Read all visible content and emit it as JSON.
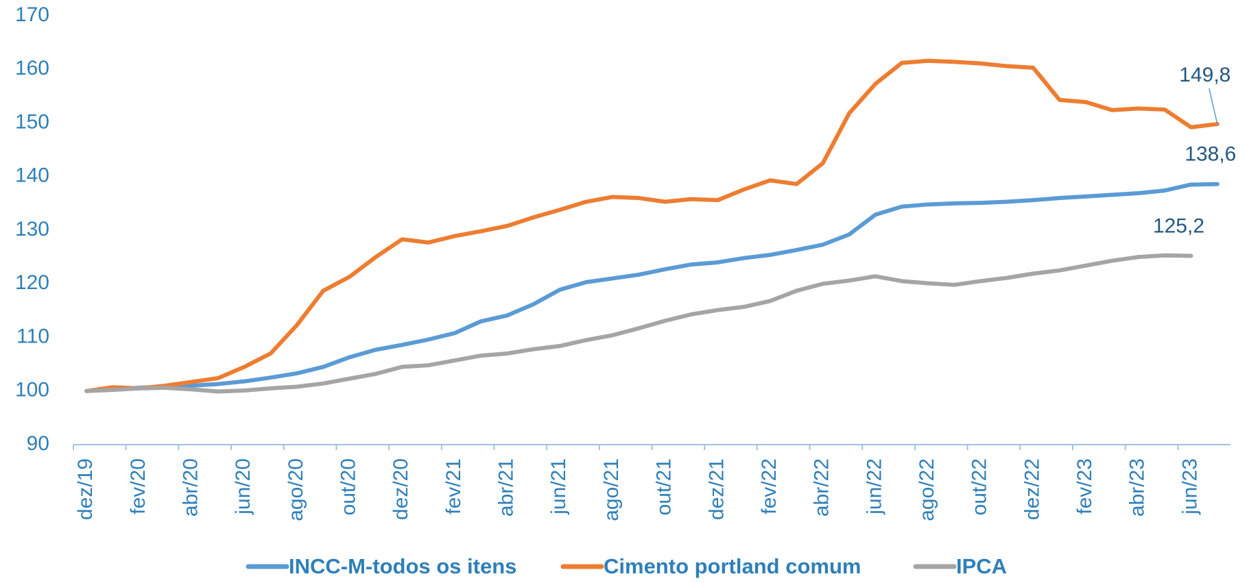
{
  "chart_data": {
    "type": "line",
    "categories": [
      "dez/19",
      null,
      "fev/20",
      null,
      "abr/20",
      null,
      "jun/20",
      null,
      "ago/20",
      null,
      "out/20",
      null,
      "dez/20",
      null,
      "fev/21",
      null,
      "abr/21",
      null,
      "jun/21",
      null,
      "ago/21",
      null,
      "out/21",
      null,
      "dez/21",
      null,
      "fev/22",
      null,
      "abr/22",
      null,
      "jun/22",
      null,
      "ago/22",
      null,
      "out/22",
      null,
      "dez/22",
      null,
      "fev/23",
      null,
      "abr/23",
      null,
      "jun/23",
      null
    ],
    "series": [
      {
        "name": "INCC-M-todos os itens",
        "color": "#5b9bd5",
        "values": [
          100,
          100.3,
          100.6,
          100.8,
          101.0,
          101.3,
          101.8,
          102.5,
          103.3,
          104.5,
          106.3,
          107.7,
          108.6,
          109.6,
          110.8,
          113.0,
          114.1,
          116.2,
          118.9,
          120.3,
          121.0,
          121.7,
          122.7,
          123.6,
          124.0,
          124.8,
          125.4,
          126.3,
          127.3,
          129.2,
          132.9,
          134.4,
          134.8,
          135.0,
          135.1,
          135.3,
          135.6,
          136.0,
          136.3,
          136.6,
          136.9,
          137.4,
          138.5,
          138.6
        ],
        "value_labels": [
          null,
          null,
          null,
          null,
          null,
          null,
          null,
          null,
          null,
          null,
          null,
          null,
          null,
          null,
          null,
          null,
          null,
          null,
          null,
          null,
          null,
          null,
          null,
          null,
          null,
          null,
          null,
          null,
          null,
          null,
          null,
          null,
          null,
          null,
          null,
          null,
          null,
          null,
          null,
          null,
          null,
          null,
          null,
          "138,6"
        ]
      },
      {
        "name": "Cimento portland comum",
        "color": "#ed7d31",
        "values": [
          100,
          100.7,
          100.5,
          101.0,
          101.7,
          102.4,
          104.5,
          107.0,
          112.3,
          118.7,
          121.3,
          125.0,
          128.3,
          127.7,
          128.9,
          129.8,
          130.8,
          132.4,
          133.8,
          135.3,
          136.2,
          136.0,
          135.3,
          135.8,
          135.6,
          137.6,
          139.3,
          138.6,
          142.5,
          151.8,
          157.3,
          161.2,
          161.6,
          161.4,
          161.1,
          160.6,
          160.3,
          154.3,
          153.9,
          152.4,
          152.7,
          152.5,
          149.2,
          149.8
        ],
        "value_labels": [
          null,
          null,
          null,
          null,
          null,
          null,
          null,
          null,
          null,
          null,
          null,
          null,
          null,
          null,
          null,
          null,
          null,
          null,
          null,
          null,
          null,
          null,
          null,
          null,
          null,
          null,
          null,
          null,
          null,
          null,
          null,
          null,
          null,
          null,
          null,
          null,
          null,
          null,
          null,
          null,
          null,
          null,
          null,
          "149,8"
        ]
      },
      {
        "name": "IPCA",
        "color": "#a5a5a5",
        "values": [
          100,
          100.2,
          100.5,
          100.6,
          100.3,
          99.9,
          100.1,
          100.5,
          100.8,
          101.4,
          102.3,
          103.2,
          104.5,
          104.8,
          105.7,
          106.6,
          107.0,
          107.8,
          108.4,
          109.5,
          110.4,
          111.7,
          113.1,
          114.3,
          115.1,
          115.7,
          116.8,
          118.7,
          120.0,
          120.6,
          121.4,
          120.5,
          120.1,
          119.8,
          120.5,
          121.1,
          121.9,
          122.5,
          123.4,
          124.3,
          125.0,
          125.3,
          125.2,
          null
        ],
        "value_labels": [
          null,
          null,
          null,
          null,
          null,
          null,
          null,
          null,
          null,
          null,
          null,
          null,
          null,
          null,
          null,
          null,
          null,
          null,
          null,
          null,
          null,
          null,
          null,
          null,
          null,
          null,
          null,
          null,
          null,
          null,
          null,
          null,
          null,
          null,
          null,
          null,
          null,
          null,
          null,
          null,
          null,
          null,
          "125,2",
          null
        ]
      }
    ],
    "ylim": [
      90,
      170
    ],
    "yticks": [
      90,
      100,
      110,
      120,
      130,
      140,
      150,
      160,
      170
    ],
    "grid": false,
    "legend": "bottom"
  }
}
